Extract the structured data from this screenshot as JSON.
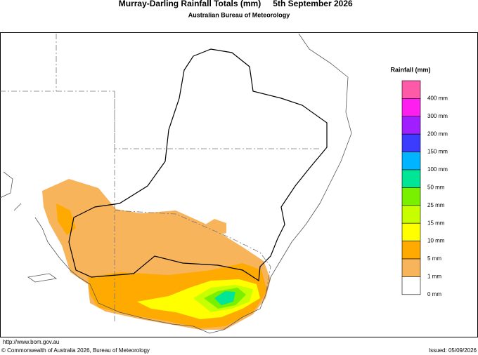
{
  "header": {
    "title": "Murray-Darling Rainfall Totals (mm)",
    "date": "5th September 2026",
    "subtitle": "Australian Bureau of Meteorology"
  },
  "legend": {
    "title": "Rainfall (mm)",
    "swatches": [
      "#ff5aa8",
      "#ff1ef0",
      "#a01eff",
      "#3c3cff",
      "#00b4ff",
      "#00e696",
      "#78f000",
      "#c8ff00",
      "#ffff00",
      "#ffaa00",
      "#f8b45a",
      "#ffffff"
    ],
    "labels": [
      "400 mm",
      "300 mm",
      "200 mm",
      "150 mm",
      "100 mm",
      "50 mm",
      "25 mm",
      "15 mm",
      "10 mm",
      "5 mm",
      "1 mm",
      "0 mm"
    ]
  },
  "footer": {
    "url": "http://www.bom.gov.au",
    "copyright": "© Commonwealth of Australia 2026, Bureau of Meteorology",
    "issued": "Issued: 05/09/2026"
  }
}
